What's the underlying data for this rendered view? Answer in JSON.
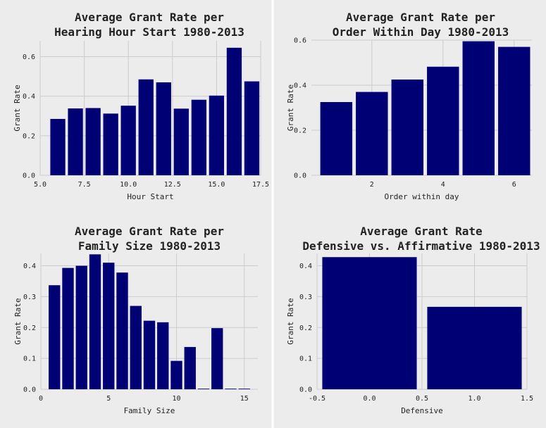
{
  "colors": {
    "background": "#ececec",
    "bar": "#000075",
    "grid": "#cccccc",
    "text": "#222222",
    "divider": "#ffffff"
  },
  "chart_data": [
    {
      "id": "hour",
      "type": "bar",
      "title": [
        "Average Grant Rate per",
        "Hearing Hour Start 1980-2013"
      ],
      "xlabel": "Hour Start",
      "ylabel": "Grant Rate",
      "xlim": [
        5,
        17.5
      ],
      "ylim": [
        0,
        0.68
      ],
      "xticks": [
        5.0,
        7.5,
        10.0,
        12.5,
        15.0,
        17.5
      ],
      "xtick_labels": [
        "5.0",
        "7.5",
        "10.0",
        "12.5",
        "15.0",
        "17.5"
      ],
      "yticks": [
        0,
        0.2,
        0.4,
        0.6
      ],
      "ytick_labels": [
        "0.0",
        "0.2",
        "0.4",
        "0.6"
      ],
      "bar_width": 0.85,
      "x": [
        6,
        7,
        8,
        9,
        10,
        11,
        12,
        13,
        14,
        15,
        16,
        17
      ],
      "values": [
        0.285,
        0.338,
        0.34,
        0.312,
        0.352,
        0.485,
        0.47,
        0.337,
        0.382,
        0.403,
        0.645,
        0.475
      ],
      "grid": true
    },
    {
      "id": "order",
      "type": "bar",
      "title": [
        "Average Grant Rate per",
        "Order Within Day 1980-2013"
      ],
      "xlabel": "Order within day",
      "ylabel": "Grant Rate",
      "xlim": [
        0.3,
        6.5
      ],
      "ylim": [
        0,
        0.6
      ],
      "xticks": [
        2,
        4,
        6
      ],
      "xtick_labels": [
        "2",
        "4",
        "6"
      ],
      "yticks": [
        0,
        0.2,
        0.4,
        0.6
      ],
      "ytick_labels": [
        "0.0",
        "0.2",
        "0.4",
        "0.6"
      ],
      "bar_width": 0.9,
      "x": [
        1,
        2,
        3,
        4,
        5,
        6
      ],
      "values": [
        0.325,
        0.37,
        0.425,
        0.482,
        0.595,
        0.57
      ],
      "grid": true
    },
    {
      "id": "family",
      "type": "bar",
      "title": [
        "Average Grant Rate per",
        "Family Size 1980-2013"
      ],
      "xlabel": "Family Size",
      "ylabel": "Grant Rate",
      "xlim": [
        0,
        16
      ],
      "ylim": [
        0,
        0.44
      ],
      "xticks": [
        0,
        5,
        10,
        15
      ],
      "xtick_labels": [
        "0",
        "5",
        "10",
        "15"
      ],
      "yticks": [
        0,
        0.1,
        0.2,
        0.3,
        0.4
      ],
      "ytick_labels": [
        "0.0",
        "0.1",
        "0.2",
        "0.3",
        "0.4"
      ],
      "bar_width": 0.85,
      "x": [
        1,
        2,
        3,
        4,
        5,
        6,
        7,
        8,
        9,
        10,
        11,
        12,
        13,
        14,
        15
      ],
      "values": [
        0.337,
        0.393,
        0.4,
        0.437,
        0.41,
        0.378,
        0.27,
        0.222,
        0.217,
        0.092,
        0.137,
        0.002,
        0.198,
        0.002,
        0.002
      ],
      "grid": true
    },
    {
      "id": "defensive",
      "type": "bar",
      "title": [
        "Average Grant Rate",
        "Defensive vs. Affirmative 1980-2013"
      ],
      "xlabel": "Defensive",
      "ylabel": "Grant Rate",
      "xlim": [
        -0.5,
        1.5
      ],
      "ylim": [
        0,
        0.44
      ],
      "xticks": [
        -0.5,
        0.0,
        0.5,
        1.0,
        1.5
      ],
      "xtick_labels": [
        "-0.5",
        "0.0",
        "0.5",
        "1.0",
        "1.5"
      ],
      "yticks": [
        0,
        0.1,
        0.2,
        0.3,
        0.4
      ],
      "ytick_labels": [
        "0.0",
        "0.1",
        "0.2",
        "0.3",
        "0.4"
      ],
      "bar_width": 0.9,
      "x": [
        0,
        1
      ],
      "values": [
        0.428,
        0.267
      ],
      "grid": true
    }
  ]
}
